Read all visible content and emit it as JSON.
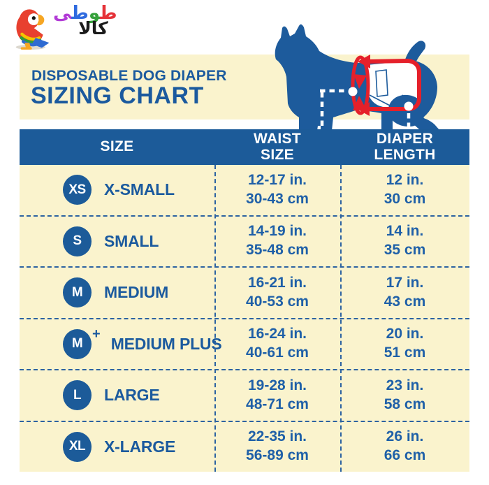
{
  "logo": {
    "brand_word_top": "طوطی",
    "brand_word_bottom": "کالا",
    "brand_word_bottom_display": "ﻛﺎﻻ",
    "letters": [
      {
        "glyph": "ﻃ",
        "color": "#e53238"
      },
      {
        "glyph": "ﻮ",
        "color": "#35a13a"
      },
      {
        "glyph": "ﻃ",
        "color": "#2f6bdf"
      },
      {
        "glyph": "ﻰ",
        "color": "#b23bd6"
      }
    ],
    "icon": "parrot-icon"
  },
  "header": {
    "title_line1": "DISPOSABLE DOG DIAPER",
    "title_line2": "SIZING CHART"
  },
  "illustration": {
    "icon": "dog-waist-length-diagram"
  },
  "table": {
    "columns": [
      "SIZE",
      "WAIST\nSIZE",
      "DIAPER\nLENGTH"
    ],
    "rows": [
      {
        "badge": "XS",
        "badge_plus": "",
        "label": "X-SMALL",
        "waist_in": "12-17 in.",
        "waist_cm": "30-43 cm",
        "length_in": "12 in.",
        "length_cm": "30 cm"
      },
      {
        "badge": "S",
        "badge_plus": "",
        "label": "SMALL",
        "waist_in": "14-19 in.",
        "waist_cm": "35-48 cm",
        "length_in": "14 in.",
        "length_cm": "35 cm"
      },
      {
        "badge": "M",
        "badge_plus": "",
        "label": "MEDIUM",
        "waist_in": "16-21 in.",
        "waist_cm": "40-53 cm",
        "length_in": "17 in.",
        "length_cm": "43 cm"
      },
      {
        "badge": "M",
        "badge_plus": "+",
        "label": "MEDIUM PLUS",
        "waist_in": "16-24 in.",
        "waist_cm": "40-61 cm",
        "length_in": "20 in.",
        "length_cm": "51 cm"
      },
      {
        "badge": "L",
        "badge_plus": "",
        "label": "LARGE",
        "waist_in": "19-28 in.",
        "waist_cm": "48-71 cm",
        "length_in": "23 in.",
        "length_cm": "58 cm"
      },
      {
        "badge": "XL",
        "badge_plus": "",
        "label": "X-LARGE",
        "waist_in": "22-35 in.",
        "waist_cm": "56-89 cm",
        "length_in": "26 in.",
        "length_cm": "66 cm"
      }
    ]
  },
  "colors": {
    "blue": "#1c5b99",
    "cream": "#faf3cd",
    "red": "#e5202a",
    "white": "#ffffff"
  }
}
